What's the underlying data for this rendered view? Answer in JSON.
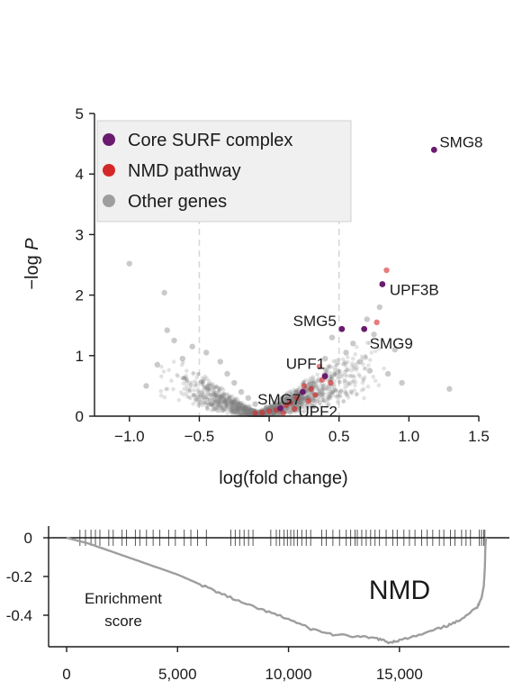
{
  "chart_data": [
    {
      "type": "scatter",
      "title": "",
      "xlabel": "log(fold change)",
      "ylabel_prefix": "−log ",
      "ylabel_italic": "P",
      "xlim": [
        -1.25,
        1.5
      ],
      "ylim": [
        0,
        5
      ],
      "xticks": [
        -1.0,
        -0.5,
        0,
        0.5,
        1.0,
        1.5
      ],
      "xtick_labels": [
        "−1.0",
        "−0.5",
        "0",
        "0.5",
        "1.0",
        "1.5"
      ],
      "yticks": [
        0,
        1,
        2,
        3,
        4,
        5
      ],
      "ytick_labels": [
        "0",
        "1",
        "2",
        "3",
        "4",
        "5"
      ],
      "threshold_lines_x": [
        -0.5,
        0.5
      ],
      "legend_position": "top-left",
      "legend": [
        {
          "label": "Core SURF complex",
          "color": "#6a1b6e"
        },
        {
          "label": "NMD pathway",
          "color": "#d62728"
        },
        {
          "label": "Other genes",
          "color": "#9e9e9e"
        }
      ],
      "series": [
        {
          "name": "Core SURF complex",
          "color": "#6a1b6e",
          "points": [
            {
              "label": "SMG8",
              "x": 1.18,
              "y": 4.4
            },
            {
              "label": "UPF3B",
              "x": 0.81,
              "y": 2.18
            },
            {
              "label": "SMG5",
              "x": 0.52,
              "y": 1.44
            },
            {
              "label": "SMG9",
              "x": 0.68,
              "y": 1.44
            },
            {
              "label": "UPF1",
              "x": 0.4,
              "y": 0.66
            },
            {
              "label": "SMG7",
              "x": 0.24,
              "y": 0.4
            },
            {
              "label": "UPF2",
              "x": 0.08,
              "y": 0.13
            }
          ]
        },
        {
          "name": "NMD pathway",
          "color": "#d62728",
          "points": [
            {
              "x": 0.84,
              "y": 2.41
            },
            {
              "x": 0.77,
              "y": 1.55
            },
            {
              "x": 0.36,
              "y": 0.82
            },
            {
              "x": 0.44,
              "y": 0.55
            },
            {
              "x": 0.3,
              "y": 0.45
            },
            {
              "x": 0.33,
              "y": 0.35
            },
            {
              "x": 0.2,
              "y": 0.3
            },
            {
              "x": 0.15,
              "y": 0.22
            },
            {
              "x": 0.12,
              "y": 0.18
            },
            {
              "x": 0.05,
              "y": 0.1
            },
            {
              "x": 0.0,
              "y": 0.08
            },
            {
              "x": -0.05,
              "y": 0.06
            },
            {
              "x": -0.1,
              "y": 0.05
            },
            {
              "x": 0.25,
              "y": 0.5
            },
            {
              "x": 0.28,
              "y": 0.25
            },
            {
              "x": 0.38,
              "y": 0.6
            },
            {
              "x": 0.1,
              "y": 0.05
            },
            {
              "x": 0.18,
              "y": 0.12
            }
          ]
        },
        {
          "name": "Other genes",
          "color": "#9e9e9e",
          "points": [
            {
              "x": -1.0,
              "y": 2.52
            },
            {
              "x": -0.75,
              "y": 2.04
            },
            {
              "x": -0.73,
              "y": 1.42
            },
            {
              "x": -0.68,
              "y": 1.25
            },
            {
              "x": -0.8,
              "y": 0.85
            },
            {
              "x": -0.88,
              "y": 0.5
            },
            {
              "x": -0.62,
              "y": 0.95
            },
            {
              "x": -0.55,
              "y": 1.15
            },
            {
              "x": -0.45,
              "y": 1.05
            },
            {
              "x": -0.35,
              "y": 0.9
            },
            {
              "x": -0.3,
              "y": 0.7
            },
            {
              "x": -0.25,
              "y": 0.55
            },
            {
              "x": -0.2,
              "y": 0.4
            },
            {
              "x": -0.15,
              "y": 0.3
            },
            {
              "x": -0.1,
              "y": 0.2
            },
            {
              "x": 0.0,
              "y": 0.05
            },
            {
              "x": 0.1,
              "y": 0.15
            },
            {
              "x": 0.4,
              "y": 0.95
            },
            {
              "x": 0.45,
              "y": 1.3
            },
            {
              "x": 0.55,
              "y": 1.05
            },
            {
              "x": 0.6,
              "y": 1.2
            },
            {
              "x": 0.65,
              "y": 0.9
            },
            {
              "x": 0.7,
              "y": 1.6
            },
            {
              "x": 0.72,
              "y": 0.75
            },
            {
              "x": 0.75,
              "y": 1.35
            },
            {
              "x": 0.79,
              "y": 1.8
            },
            {
              "x": 0.85,
              "y": 0.7
            },
            {
              "x": 0.95,
              "y": 0.55
            },
            {
              "x": 1.29,
              "y": 0.45
            },
            {
              "x": 0.9,
              "y": 1.1
            }
          ]
        }
      ]
    },
    {
      "type": "line",
      "title": "NMD",
      "annotation_lines": [
        "Enrichment",
        "score"
      ],
      "xlim": [
        0,
        19000
      ],
      "ylim": [
        -0.55,
        0
      ],
      "xticks": [
        0,
        5000,
        10000,
        15000
      ],
      "xtick_labels": [
        "0",
        "5,000",
        "10,000",
        "15,000"
      ],
      "yticks": [
        0,
        -0.2,
        -0.4
      ],
      "ytick_labels": [
        "0",
        "-0.2",
        "-0.4"
      ],
      "series": [
        {
          "name": "",
          "color": "#9e9e9e",
          "x": [
            0,
            1000,
            2000,
            3000,
            4000,
            5000,
            6000,
            7000,
            8000,
            9000,
            10000,
            11000,
            12000,
            13000,
            14000,
            14500,
            15000,
            16000,
            17000,
            17500,
            18000,
            18500,
            18700,
            18800,
            18850,
            18870,
            18900
          ],
          "y": [
            0,
            -0.03,
            -0.07,
            -0.11,
            -0.15,
            -0.19,
            -0.24,
            -0.29,
            -0.34,
            -0.38,
            -0.42,
            -0.47,
            -0.5,
            -0.51,
            -0.52,
            -0.54,
            -0.53,
            -0.5,
            -0.46,
            -0.44,
            -0.4,
            -0.36,
            -0.31,
            -0.25,
            -0.15,
            -0.05,
            0
          ]
        }
      ],
      "hit_positions": [
        600,
        850,
        1100,
        1300,
        1500,
        1900,
        2100,
        2500,
        2700,
        3100,
        3300,
        3600,
        3900,
        4200,
        4600,
        4900,
        5300,
        5600,
        5900,
        6300,
        7400,
        7600,
        7800,
        8000,
        8200,
        8400,
        9200,
        9450,
        9600,
        9800,
        9950,
        10100,
        10250,
        10400,
        10600,
        10800,
        11000,
        11500,
        11700,
        12000,
        12300,
        12600,
        12800,
        13000,
        13100,
        13300,
        13500,
        13700,
        13900,
        14100,
        14400,
        14700,
        14900,
        15200,
        15450,
        15700,
        16000,
        16250,
        16500,
        16800,
        17000,
        17300,
        17500,
        17800,
        18000,
        18200,
        18600,
        18700,
        18800,
        18850
      ]
    }
  ]
}
